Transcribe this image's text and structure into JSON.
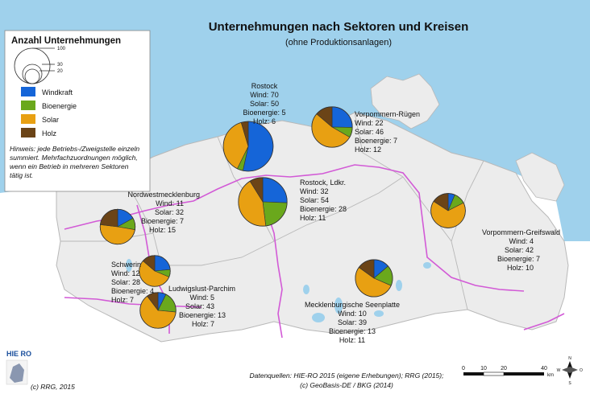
{
  "title": "Unternehmungen nach Sektoren und Kreisen",
  "subtitle": "(ohne Produktionsanlagen)",
  "legend": {
    "title": "Anzahl Unternehmungen",
    "size_ticks": [
      "100",
      "30",
      "20"
    ],
    "categories": [
      {
        "label": "Windkraft",
        "color": "#1565d8"
      },
      {
        "label": "Bioenergie",
        "color": "#6aa81c"
      },
      {
        "label": "Solar",
        "color": "#e8a012"
      },
      {
        "label": "Holz",
        "color": "#6b4417"
      }
    ],
    "hint": [
      "Hinweis: jede Betriebs-/Zweigstelle einzeln",
      "summiert. Mehrfachzuordnungen möglich,",
      "wenn ein Betrieb in mehreren Sektoren",
      "tätig ist."
    ]
  },
  "districts": [
    {
      "name": "Rostock",
      "values": {
        "wind": 70,
        "solar": 50,
        "bio": 5,
        "holz": 6
      },
      "lines": [
        "Rostock",
        "Wind: 70",
        "Solar: 50",
        "Bioenergie: 5",
        "Holz: 6"
      ]
    },
    {
      "name": "Vorpommern-Rügen",
      "values": {
        "wind": 22,
        "solar": 46,
        "bio": 7,
        "holz": 12
      },
      "lines": [
        "Vorpommern-Rügen",
        "Wind: 22",
        "Solar: 46",
        "Bioenergie: 7",
        "Holz: 12"
      ]
    },
    {
      "name": "Rostock, Ldkr.",
      "values": {
        "wind": 32,
        "solar": 54,
        "bio": 28,
        "holz": 11
      },
      "lines": [
        "Rostock, Ldkr.",
        "Wind: 32",
        "Solar: 54",
        "Bioenergie: 28",
        "Holz: 11"
      ]
    },
    {
      "name": "Nordwestmecklenburg",
      "values": {
        "wind": 11,
        "solar": 32,
        "bio": 7,
        "holz": 15
      },
      "lines": [
        "Nordwestmecklenburg",
        "Wind: 11",
        "Solar: 32",
        "Bioenergie: 7",
        "Holz: 15"
      ]
    },
    {
      "name": "Vorpommern-Greifswald",
      "values": {
        "wind": 4,
        "solar": 42,
        "bio": 7,
        "holz": 10
      },
      "lines": [
        "Vorpommern-Greifswald",
        "Wind: 4",
        "Solar: 42",
        "Bioenergie: 7",
        "Holz: 10"
      ]
    },
    {
      "name": "Schwerin",
      "values": {
        "wind": 12,
        "solar": 28,
        "bio": 4,
        "holz": 7
      },
      "lines": [
        "Schwerin",
        "Wind: 12",
        "Solar: 28",
        "Bioenergie: 4",
        "Holz: 7"
      ]
    },
    {
      "name": "Ludwigslust-Parchim",
      "values": {
        "wind": 5,
        "solar": 43,
        "bio": 13,
        "holz": 7
      },
      "lines": [
        "Ludwigslust-Parchim",
        "Wind: 5",
        "Solar: 43",
        "Bioenergie: 13",
        "Holz: 7"
      ]
    },
    {
      "name": "Mecklenburgische Seenplatte",
      "values": {
        "wind": 10,
        "solar": 39,
        "bio": 13,
        "holz": 11
      },
      "lines": [
        "Mecklenburgische Seenplatte",
        "Wind: 10",
        "Solar: 39",
        "Bioenergie: 13",
        "Holz: 11"
      ]
    }
  ],
  "logo": "HIE RO",
  "copyright": "(c) RRG, 2015",
  "sources": [
    "Datenquellen: HIE-RO 2015 (eigene Erhebungen); RRG (2015);",
    "(c) GeoBasis-DE / BKG (2014)"
  ],
  "scalebar": {
    "ticks": [
      "0",
      "10",
      "20",
      "40"
    ],
    "unit": "km"
  },
  "compass": [
    "N",
    "O",
    "S",
    "W"
  ],
  "colors": {
    "sea": "#9fd1ec",
    "land": "#ececec",
    "border": "#b8b8b8",
    "highway": "#d25ad6"
  }
}
